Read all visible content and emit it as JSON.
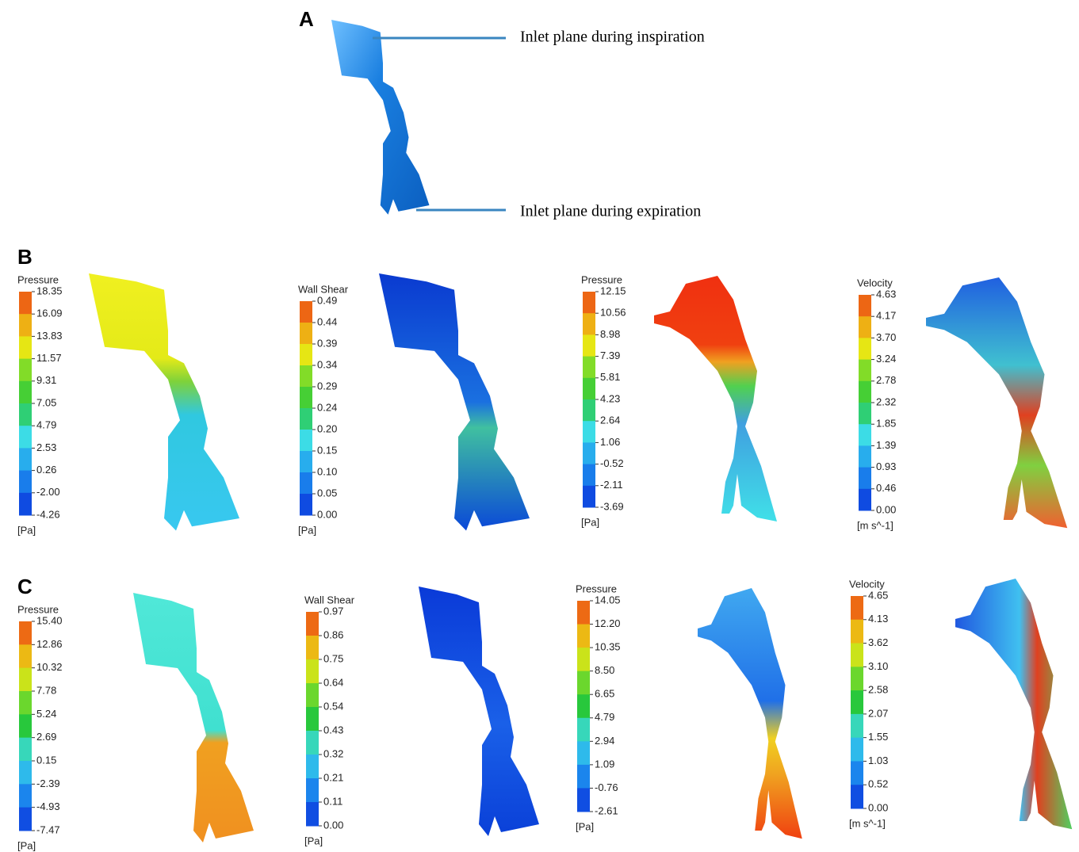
{
  "panels": [
    {
      "label": "A",
      "annotations": [
        "Inlet plane during inspiration",
        "Inlet plane during expiration"
      ]
    },
    {
      "label": "B",
      "legends": [
        {
          "title": "Pressure",
          "unit": "[Pa]",
          "ticks": [
            "18.35",
            "16.09",
            "13.83",
            "11.57",
            "9.31",
            "7.05",
            "4.79",
            "2.53",
            "0.26",
            "-2.00",
            "-4.26"
          ]
        },
        {
          "title": "Wall Shear",
          "unit": "[Pa]",
          "ticks": [
            "0.49",
            "0.44",
            "0.39",
            "0.34",
            "0.29",
            "0.24",
            "0.20",
            "0.15",
            "0.10",
            "0.05",
            "0.00"
          ]
        },
        {
          "title": "Pressure",
          "unit": "[Pa]",
          "ticks": [
            "12.15",
            "10.56",
            "8.98",
            "7.39",
            "5.81",
            "4.23",
            "2.64",
            "1.06",
            "-0.52",
            "-2.11",
            "-3.69"
          ]
        },
        {
          "title": "Velocity",
          "unit": "[m s^-1]",
          "ticks": [
            "4.63",
            "4.17",
            "3.70",
            "3.24",
            "2.78",
            "2.32",
            "1.85",
            "1.39",
            "0.93",
            "0.46",
            "0.00"
          ]
        }
      ]
    },
    {
      "label": "C",
      "legends": [
        {
          "title": "Pressure",
          "unit": "[Pa]",
          "ticks": [
            "15.40",
            "12.86",
            "10.32",
            "7.78",
            "5.24",
            "2.69",
            "0.15",
            "-2.39",
            "-4.93",
            "-7.47"
          ]
        },
        {
          "title": "Wall Shear",
          "unit": "[Pa]",
          "ticks": [
            "0.97",
            "0.86",
            "0.75",
            "0.64",
            "0.54",
            "0.43",
            "0.32",
            "0.21",
            "0.11",
            "0.00"
          ]
        },
        {
          "title": "Pressure",
          "unit": "[Pa]",
          "ticks": [
            "14.05",
            "12.20",
            "10.35",
            "8.50",
            "6.65",
            "4.79",
            "2.94",
            "1.09",
            "-0.76",
            "-2.61"
          ]
        },
        {
          "title": "Velocity",
          "unit": "[m s^-1]",
          "ticks": [
            "4.65",
            "4.13",
            "3.62",
            "3.10",
            "2.58",
            "2.07",
            "1.55",
            "1.03",
            "0.52",
            "0.00"
          ]
        }
      ]
    }
  ]
}
